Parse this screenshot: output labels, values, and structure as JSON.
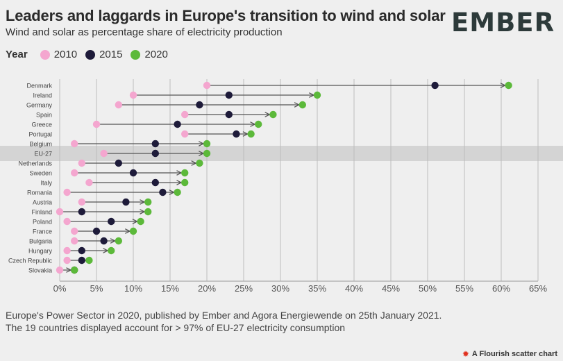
{
  "header": {
    "title": "Leaders and laggards in Europe's transition to wind and solar",
    "subtitle": "Wind and solar as percentage share of electricity production",
    "logo": "EMBER"
  },
  "legend": {
    "title": "Year",
    "items": [
      {
        "label": "2010",
        "color": "#f4a6cf"
      },
      {
        "label": "2015",
        "color": "#1e1b3a"
      },
      {
        "label": "2020",
        "color": "#5cb93a"
      }
    ]
  },
  "chart_data": {
    "type": "dot-arrow",
    "xlim": [
      0,
      65
    ],
    "xticks": [
      0,
      5,
      10,
      15,
      20,
      25,
      30,
      35,
      40,
      45,
      50,
      55,
      60,
      65
    ],
    "xtick_labels": [
      "0%",
      "5%",
      "10%",
      "15%",
      "20%",
      "25%",
      "30%",
      "35%",
      "40%",
      "45%",
      "50%",
      "55%",
      "60%",
      "65%"
    ],
    "highlight": "EU-27",
    "categories": [
      "Denmark",
      "Ireland",
      "Germany",
      "Spain",
      "Greece",
      "Portugal",
      "Belgium",
      "EU-27",
      "Netherlands",
      "Sweden",
      "Italy",
      "Romania",
      "Austria",
      "Finland",
      "Poland",
      "France",
      "Bulgaria",
      "Hungary",
      "Czech Republic",
      "Slovakia"
    ],
    "series": [
      {
        "name": "2010",
        "values": [
          20,
          10,
          8,
          17,
          5,
          17,
          2,
          6,
          3,
          2,
          4,
          1,
          3,
          0,
          1,
          2,
          2,
          1,
          1,
          0
        ]
      },
      {
        "name": "2015",
        "values": [
          51,
          23,
          19,
          23,
          16,
          24,
          13,
          13,
          8,
          10,
          13,
          14,
          9,
          3,
          7,
          5,
          6,
          3,
          3,
          2
        ]
      },
      {
        "name": "2020",
        "values": [
          61,
          35,
          33,
          29,
          27,
          26,
          20,
          20,
          19,
          17,
          17,
          16,
          12,
          12,
          11,
          10,
          8,
          7,
          4,
          2
        ]
      }
    ]
  },
  "footer": {
    "line1": "Europe's Power Sector in 2020, published by Ember and Agora Energiewende on 25th January 2021.",
    "line2": "The 19 countries displayed account for > 97% of EU-27 electricity consumption"
  },
  "credit": {
    "text": "A Flourish scatter chart"
  }
}
